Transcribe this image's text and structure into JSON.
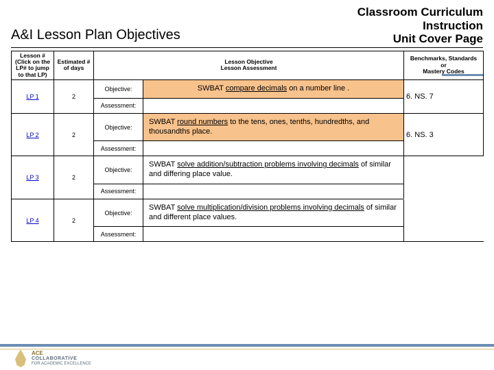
{
  "page": {
    "title_left": "A&I Lesson Plan Objectives",
    "title_right_line1": "Classroom Curriculum",
    "title_right_line2": "Instruction",
    "title_right_line3": "Unit Cover Page"
  },
  "colors": {
    "highlight_row_bg": "#f8c28c",
    "accent_bar": "#6b8db3",
    "gold": "#d9c07a",
    "link": "#0000cc"
  },
  "table": {
    "headers": {
      "lesson": "Lesson # (Click on the LP# to jump to that LP)",
      "days": "Estimated # of days",
      "objective_header": "Lesson Objective\nLesson Assessment",
      "benchmarks": "Benchmarks, Standards\nor\nMastery Codes"
    },
    "row_labels": {
      "objective": "Objective:",
      "assessment": "Assessment:"
    },
    "rows": [
      {
        "lp": "LP 1",
        "days": "2",
        "objective_html": "SWBAT <u>compare decimals</u> on a number line .",
        "benchmark": "6. NS. 7",
        "highlighted": true
      },
      {
        "lp": "LP 2",
        "days": "2",
        "objective_html": "SWBAT <u>round numbers</u> to the tens, ones, tenths, hundredths, and thousandths place.",
        "benchmark": "6. NS. 3",
        "highlighted": true
      },
      {
        "lp": "LP 3",
        "days": "2",
        "objective_html": "SWBAT <u>solve addition/subtraction problems involving decimals</u> of similar and differing place value.",
        "benchmark": "",
        "highlighted": false
      },
      {
        "lp": "LP 4",
        "days": "2",
        "objective_html": "SWBAT <u>solve multiplication/division problems involving decimals</u> of similar and different place values.",
        "benchmark": "",
        "highlighted": false
      }
    ]
  },
  "footer": {
    "logo_ace": "ACE",
    "logo_collab": "COLLABORATIVE",
    "logo_tag": "FOR ACADEMIC EXCELLENCE"
  },
  "typography": {
    "title_left_fontsize": 20,
    "title_right_fontsize": 17,
    "table_header_fontsize": 8.5,
    "objective_text_fontsize": 11,
    "benchmark_fontsize": 11
  }
}
